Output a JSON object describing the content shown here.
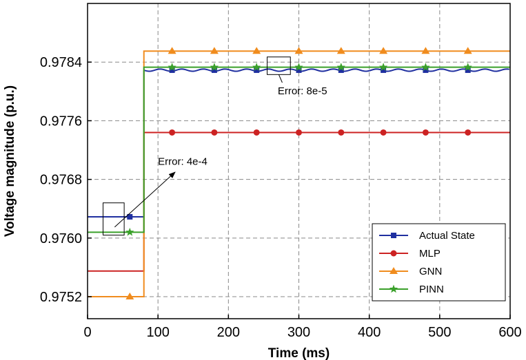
{
  "chart_data": {
    "type": "line",
    "xlabel": "Time (ms)",
    "ylabel": "Voltage magnitude (p.u.)",
    "xlim": [
      0,
      600
    ],
    "ylim": [
      0.9749,
      0.9792
    ],
    "x_ticks": [
      0,
      100,
      200,
      300,
      400,
      500,
      600
    ],
    "y_ticks": [
      0.9752,
      0.976,
      0.9768,
      0.9776,
      0.9784
    ],
    "grid": true,
    "legend_position": "bottom-right",
    "step_time": 80,
    "series": [
      {
        "name": "Actual State",
        "color": "#1f2fa0",
        "marker": "square",
        "wavy": true,
        "before": 0.97629,
        "after": 0.97829,
        "marker_x": [
          60,
          120,
          180,
          240,
          300,
          360,
          420,
          480,
          540
        ]
      },
      {
        "name": "MLP",
        "color": "#cc2222",
        "marker": "circle",
        "wavy": false,
        "before": 0.97555,
        "after": 0.97744,
        "marker_x": [
          120,
          180,
          240,
          300,
          360,
          420,
          480,
          540
        ]
      },
      {
        "name": "GNN",
        "color": "#f08c1e",
        "marker": "triangle",
        "wavy": false,
        "before": 0.9752,
        "after": 0.97855,
        "marker_x": [
          60,
          120,
          180,
          240,
          300,
          360,
          420,
          480,
          540
        ]
      },
      {
        "name": "PINN",
        "color": "#3aa02a",
        "marker": "star",
        "wavy": false,
        "before": 0.97608,
        "after": 0.97833,
        "marker_x": [
          60,
          120,
          180,
          240,
          300,
          360,
          420,
          480,
          540
        ]
      }
    ],
    "annotations": [
      {
        "text": "Error: 4e-4",
        "box_x": [
          22,
          52
        ],
        "box_y": [
          0.97604,
          0.97648
        ],
        "text_at": [
          100,
          0.977
        ]
      },
      {
        "text": "Error: 8e-5",
        "box_x": [
          255,
          288
        ],
        "box_y": [
          0.97823,
          0.97847
        ],
        "text_at": [
          270,
          0.978
        ]
      }
    ]
  }
}
